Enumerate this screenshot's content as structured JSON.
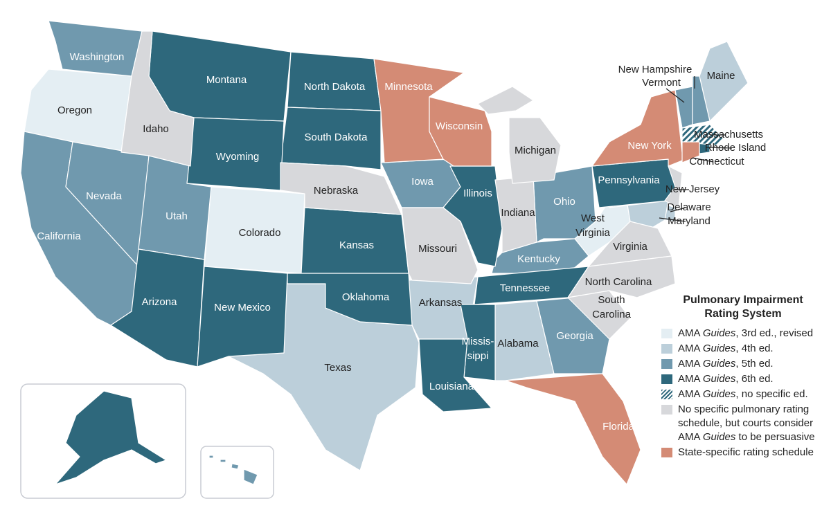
{
  "legend": {
    "title": "Pulmonary Impairment Rating System",
    "items": [
      {
        "label": [
          "AMA ",
          "Guides",
          ", 3rd ed., revised"
        ],
        "color": "#e4eef3",
        "states": [
          "Oregon",
          "Colorado",
          [
            "West",
            "Virginia"
          ]
        ]
      },
      {
        "label": [
          "AMA ",
          "Guides",
          ", 4th ed."
        ],
        "color": "#bccfda",
        "states": [
          "Maine",
          "Texas",
          "Arkansas",
          "Alabama",
          "Delaware",
          "Maryland"
        ]
      },
      {
        "label": [
          "AMA ",
          "Guides",
          ", 5th ed."
        ],
        "color": "#7099ae",
        "states": [
          "Washington",
          "California",
          "Nevada",
          "Utah",
          "Iowa",
          "Ohio",
          "Kentucky",
          "Georgia",
          "Vermont",
          "New Hampshire",
          "Hawaii"
        ]
      },
      {
        "label": [
          "AMA ",
          "Guides",
          ", 6th ed."
        ],
        "color": "#2e687c",
        "states": [
          "Montana",
          "North Dakota",
          "South Dakota",
          "Wyoming",
          "Kansas",
          "Oklahoma",
          "Arizona",
          "New Mexico",
          "Illinois",
          "Tennessee",
          [
            "Missis-",
            "sippi"
          ],
          "Louisiana",
          "Pennsylvania",
          "Rhode Island",
          "Alaska"
        ]
      },
      {
        "label": [
          "AMA ",
          "Guides",
          ", no specific ed."
        ],
        "color": "#2e687c",
        "hatch": true,
        "states": [
          "Massachusetts"
        ]
      },
      {
        "label": [
          "No specific pulmonary rating schedule, but courts consider AMA ",
          "Guides",
          " to be persuasive"
        ],
        "color": "#d7d8db",
        "states": [
          "Idaho",
          "Nebraska",
          "Missouri",
          "Indiana",
          "Michigan",
          "Virginia",
          "North Carolina",
          [
            "South",
            "Carolina"
          ],
          "New Jersey"
        ]
      },
      {
        "label": [
          "State-specific rating schedule"
        ],
        "color": "#d48b75",
        "states": [
          "Minnesota",
          "Wisconsin",
          "New York",
          "Florida",
          "Connecticut"
        ]
      }
    ]
  }
}
